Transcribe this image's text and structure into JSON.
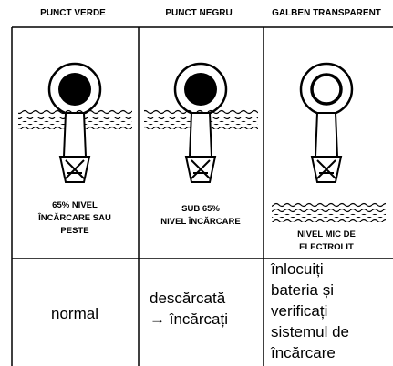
{
  "header": [
    "PUNCT VERDE",
    "PUNCT NEGRU",
    "GALBEN TRANSPARENT"
  ],
  "captions": [
    [
      "65% NIVEL",
      "ÎNCĂRCARE SAU",
      "PESTE"
    ],
    [
      "SUB 65%",
      "NIVEL ÎNCĂRCARE"
    ],
    [
      "NIVEL MIC DE",
      "ELECTROLIT"
    ]
  ],
  "actions": [
    [
      "normal"
    ],
    [
      "descărcată",
      "→ încărcați"
    ],
    [
      "înlocuiți",
      "bateria și",
      "verificați",
      "sistemul de",
      "încărcare"
    ]
  ]
}
